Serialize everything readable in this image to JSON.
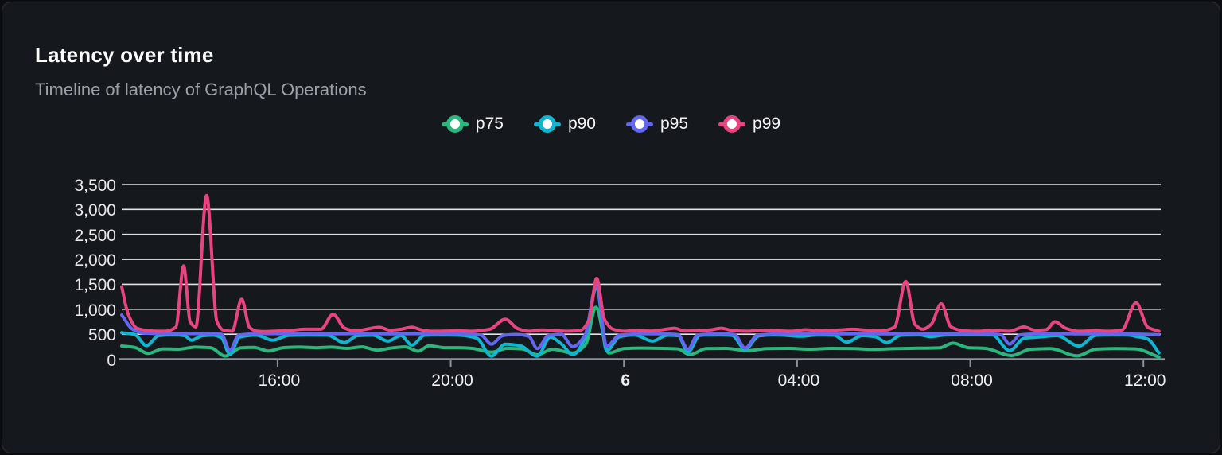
{
  "header": {
    "title": "Latency over time",
    "subtitle": "Timeline of latency of GraphQL Operations"
  },
  "chart_data": {
    "type": "line",
    "title": "Latency over time",
    "subtitle": "Timeline of latency of GraphQL Operations",
    "grid": "horizontal",
    "legend_position": "top-center",
    "y_axis": {
      "unit": "ms",
      "min": 0,
      "max": 3500,
      "tick_values": [
        3500,
        3000,
        2500,
        2000,
        1500,
        1000,
        500,
        0
      ],
      "labels": [
        "3,500",
        "3,000",
        "2,500",
        "2,000",
        "1,500",
        "1,000",
        "500",
        "0"
      ]
    },
    "x_axis": {
      "unit": "time",
      "note": "24h window, hours measured from left edge (~12:20)",
      "span_hours": 24,
      "ticks": [
        {
          "label": "16:00",
          "hours": 3.6
        },
        {
          "label": "20:00",
          "hours": 7.6
        },
        {
          "label": "6",
          "hours": 11.6
        },
        {
          "label": "04:00",
          "hours": 15.6
        },
        {
          "label": "08:00",
          "hours": 19.6
        },
        {
          "label": "12:00",
          "hours": 23.6
        }
      ]
    },
    "series": [
      {
        "name": "p75",
        "color": "#29b77e",
        "points": [
          [
            0,
            263
          ],
          [
            0.3,
            235
          ],
          [
            0.61,
            115
          ],
          [
            0.95,
            205
          ],
          [
            1.3,
            200
          ],
          [
            1.7,
            240
          ],
          [
            2.05,
            230
          ],
          [
            2.39,
            62
          ],
          [
            2.75,
            225
          ],
          [
            3.05,
            235
          ],
          [
            3.39,
            165
          ],
          [
            3.75,
            232
          ],
          [
            4.1,
            240
          ],
          [
            4.5,
            228
          ],
          [
            4.85,
            240
          ],
          [
            5.2,
            215
          ],
          [
            5.55,
            245
          ],
          [
            5.9,
            180
          ],
          [
            6.2,
            220
          ],
          [
            6.55,
            245
          ],
          [
            6.85,
            160
          ],
          [
            7.1,
            270
          ],
          [
            7.45,
            230
          ],
          [
            7.8,
            230
          ],
          [
            8.1,
            215
          ],
          [
            8.54,
            140
          ],
          [
            8.9,
            215
          ],
          [
            9.25,
            205
          ],
          [
            9.6,
            90
          ],
          [
            9.95,
            200
          ],
          [
            10.42,
            122
          ],
          [
            10.72,
            300
          ],
          [
            10.95,
            1040
          ],
          [
            11.25,
            122
          ],
          [
            11.6,
            210
          ],
          [
            12.0,
            222
          ],
          [
            12.5,
            215
          ],
          [
            12.85,
            205
          ],
          [
            13.12,
            90
          ],
          [
            13.5,
            210
          ],
          [
            13.95,
            215
          ],
          [
            14.46,
            170
          ],
          [
            14.9,
            210
          ],
          [
            15.4,
            215
          ],
          [
            15.9,
            200
          ],
          [
            16.4,
            215
          ],
          [
            16.9,
            210
          ],
          [
            17.4,
            196
          ],
          [
            17.9,
            212
          ],
          [
            18.4,
            218
          ],
          [
            18.9,
            228
          ],
          [
            19.2,
            320
          ],
          [
            19.55,
            230
          ],
          [
            19.95,
            215
          ],
          [
            20.55,
            72
          ],
          [
            21.0,
            200
          ],
          [
            21.45,
            212
          ],
          [
            22.07,
            66
          ],
          [
            22.5,
            200
          ],
          [
            22.95,
            212
          ],
          [
            23.4,
            206
          ],
          [
            23.96,
            42
          ]
        ]
      },
      {
        "name": "p90",
        "color": "#10b6d0",
        "points": [
          [
            0,
            530
          ],
          [
            0.3,
            495
          ],
          [
            0.57,
            270
          ],
          [
            0.85,
            470
          ],
          [
            1.2,
            490
          ],
          [
            1.45,
            470
          ],
          [
            1.61,
            380
          ],
          [
            1.85,
            465
          ],
          [
            2.1,
            480
          ],
          [
            2.3,
            430
          ],
          [
            2.5,
            95
          ],
          [
            2.72,
            440
          ],
          [
            3.1,
            480
          ],
          [
            3.49,
            380
          ],
          [
            3.85,
            475
          ],
          [
            4.3,
            485
          ],
          [
            4.75,
            480
          ],
          [
            5.14,
            330
          ],
          [
            5.45,
            470
          ],
          [
            5.8,
            480
          ],
          [
            6.15,
            360
          ],
          [
            6.45,
            470
          ],
          [
            6.7,
            280
          ],
          [
            7.0,
            480
          ],
          [
            7.4,
            490
          ],
          [
            7.8,
            480
          ],
          [
            8.2,
            420
          ],
          [
            8.54,
            60
          ],
          [
            8.86,
            300
          ],
          [
            9.2,
            270
          ],
          [
            9.6,
            60
          ],
          [
            9.9,
            440
          ],
          [
            10.15,
            310
          ],
          [
            10.42,
            90
          ],
          [
            10.7,
            420
          ],
          [
            10.97,
            1440
          ],
          [
            11.2,
            170
          ],
          [
            11.5,
            450
          ],
          [
            11.85,
            485
          ],
          [
            12.26,
            360
          ],
          [
            12.6,
            478
          ],
          [
            12.85,
            470
          ],
          [
            13.08,
            140
          ],
          [
            13.35,
            475
          ],
          [
            13.8,
            490
          ],
          [
            14.1,
            475
          ],
          [
            14.4,
            200
          ],
          [
            14.72,
            465
          ],
          [
            15.1,
            488
          ],
          [
            15.69,
            458
          ],
          [
            16.1,
            488
          ],
          [
            16.45,
            480
          ],
          [
            16.75,
            340
          ],
          [
            17.1,
            470
          ],
          [
            17.4,
            450
          ],
          [
            17.67,
            330
          ],
          [
            18.0,
            480
          ],
          [
            18.4,
            492
          ],
          [
            18.68,
            452
          ],
          [
            19.1,
            492
          ],
          [
            19.6,
            495
          ],
          [
            20.1,
            492
          ],
          [
            20.51,
            170
          ],
          [
            20.85,
            420
          ],
          [
            21.15,
            440
          ],
          [
            21.6,
            470
          ],
          [
            22.11,
            262
          ],
          [
            22.5,
            478
          ],
          [
            22.9,
            490
          ],
          [
            23.2,
            488
          ],
          [
            23.45,
            452
          ],
          [
            23.7,
            400
          ],
          [
            23.96,
            125
          ]
        ]
      },
      {
        "name": "p95",
        "color": "#6366f1",
        "points": [
          [
            0,
            885
          ],
          [
            0.25,
            600
          ],
          [
            0.5,
            520
          ],
          [
            1.0,
            510
          ],
          [
            1.5,
            512
          ],
          [
            2.0,
            508
          ],
          [
            2.3,
            500
          ],
          [
            2.5,
            180
          ],
          [
            2.7,
            480
          ],
          [
            3.2,
            510
          ],
          [
            3.8,
            508
          ],
          [
            4.4,
            512
          ],
          [
            5.0,
            508
          ],
          [
            5.6,
            510
          ],
          [
            6.2,
            505
          ],
          [
            6.8,
            510
          ],
          [
            7.4,
            508
          ],
          [
            8.0,
            505
          ],
          [
            8.3,
            480
          ],
          [
            8.54,
            300
          ],
          [
            8.8,
            470
          ],
          [
            9.1,
            495
          ],
          [
            9.4,
            460
          ],
          [
            9.6,
            210
          ],
          [
            9.85,
            470
          ],
          [
            10.15,
            500
          ],
          [
            10.42,
            250
          ],
          [
            10.7,
            480
          ],
          [
            10.97,
            1500
          ],
          [
            11.2,
            260
          ],
          [
            11.5,
            480
          ],
          [
            12.0,
            508
          ],
          [
            12.5,
            505
          ],
          [
            12.85,
            490
          ],
          [
            13.08,
            200
          ],
          [
            13.3,
            485
          ],
          [
            13.8,
            505
          ],
          [
            14.15,
            495
          ],
          [
            14.4,
            220
          ],
          [
            14.68,
            480
          ],
          [
            15.2,
            505
          ],
          [
            15.8,
            508
          ],
          [
            16.4,
            505
          ],
          [
            17.0,
            508
          ],
          [
            17.6,
            505
          ],
          [
            18.2,
            508
          ],
          [
            18.8,
            505
          ],
          [
            19.4,
            508
          ],
          [
            20.0,
            505
          ],
          [
            20.3,
            490
          ],
          [
            20.51,
            300
          ],
          [
            20.75,
            485
          ],
          [
            21.2,
            505
          ],
          [
            21.8,
            508
          ],
          [
            22.4,
            505
          ],
          [
            23.0,
            505
          ],
          [
            23.5,
            500
          ],
          [
            23.96,
            490
          ]
        ]
      },
      {
        "name": "p99",
        "color": "#e8447f",
        "points": [
          [
            0,
            1450
          ],
          [
            0.15,
            900
          ],
          [
            0.35,
            620
          ],
          [
            0.7,
            565
          ],
          [
            1.0,
            560
          ],
          [
            1.25,
            640
          ],
          [
            1.43,
            1870
          ],
          [
            1.58,
            750
          ],
          [
            1.71,
            645
          ],
          [
            1.96,
            3280
          ],
          [
            2.2,
            750
          ],
          [
            2.35,
            580
          ],
          [
            2.55,
            560
          ],
          [
            2.77,
            1200
          ],
          [
            2.95,
            640
          ],
          [
            3.1,
            565
          ],
          [
            3.3,
            555
          ],
          [
            3.6,
            565
          ],
          [
            3.9,
            575
          ],
          [
            4.2,
            600
          ],
          [
            4.6,
            600
          ],
          [
            4.88,
            900
          ],
          [
            5.15,
            620
          ],
          [
            5.4,
            565
          ],
          [
            5.65,
            600
          ],
          [
            5.95,
            640
          ],
          [
            6.2,
            580
          ],
          [
            6.45,
            600
          ],
          [
            6.7,
            640
          ],
          [
            6.95,
            580
          ],
          [
            7.2,
            560
          ],
          [
            7.5,
            565
          ],
          [
            7.8,
            570
          ],
          [
            8.1,
            560
          ],
          [
            8.5,
            600
          ],
          [
            8.86,
            800
          ],
          [
            9.15,
            610
          ],
          [
            9.4,
            560
          ],
          [
            9.7,
            585
          ],
          [
            10.0,
            570
          ],
          [
            10.3,
            560
          ],
          [
            10.6,
            580
          ],
          [
            10.8,
            800
          ],
          [
            10.97,
            1620
          ],
          [
            11.15,
            800
          ],
          [
            11.35,
            600
          ],
          [
            11.6,
            560
          ],
          [
            11.9,
            580
          ],
          [
            12.2,
            565
          ],
          [
            12.5,
            590
          ],
          [
            12.77,
            620
          ],
          [
            13.0,
            565
          ],
          [
            13.3,
            570
          ],
          [
            13.6,
            585
          ],
          [
            13.85,
            620
          ],
          [
            14.1,
            575
          ],
          [
            14.45,
            560
          ],
          [
            14.8,
            580
          ],
          [
            15.1,
            570
          ],
          [
            15.45,
            560
          ],
          [
            15.8,
            590
          ],
          [
            16.1,
            570
          ],
          [
            16.5,
            580
          ],
          [
            16.9,
            600
          ],
          [
            17.2,
            580
          ],
          [
            17.55,
            570
          ],
          [
            17.85,
            640
          ],
          [
            18.11,
            1560
          ],
          [
            18.32,
            700
          ],
          [
            18.5,
            600
          ],
          [
            18.7,
            700
          ],
          [
            18.93,
            1110
          ],
          [
            19.15,
            650
          ],
          [
            19.45,
            570
          ],
          [
            19.8,
            560
          ],
          [
            20.1,
            580
          ],
          [
            20.5,
            560
          ],
          [
            20.84,
            645
          ],
          [
            21.1,
            580
          ],
          [
            21.35,
            590
          ],
          [
            21.56,
            750
          ],
          [
            21.8,
            620
          ],
          [
            22.1,
            560
          ],
          [
            22.45,
            570
          ],
          [
            22.8,
            560
          ],
          [
            23.1,
            580
          ],
          [
            23.43,
            1130
          ],
          [
            23.7,
            640
          ],
          [
            23.96,
            560
          ]
        ]
      }
    ],
    "colors": {
      "background": "#15181c",
      "border": "#2c3037",
      "gridline": "#ffffff",
      "axis": "#8b919b"
    }
  }
}
